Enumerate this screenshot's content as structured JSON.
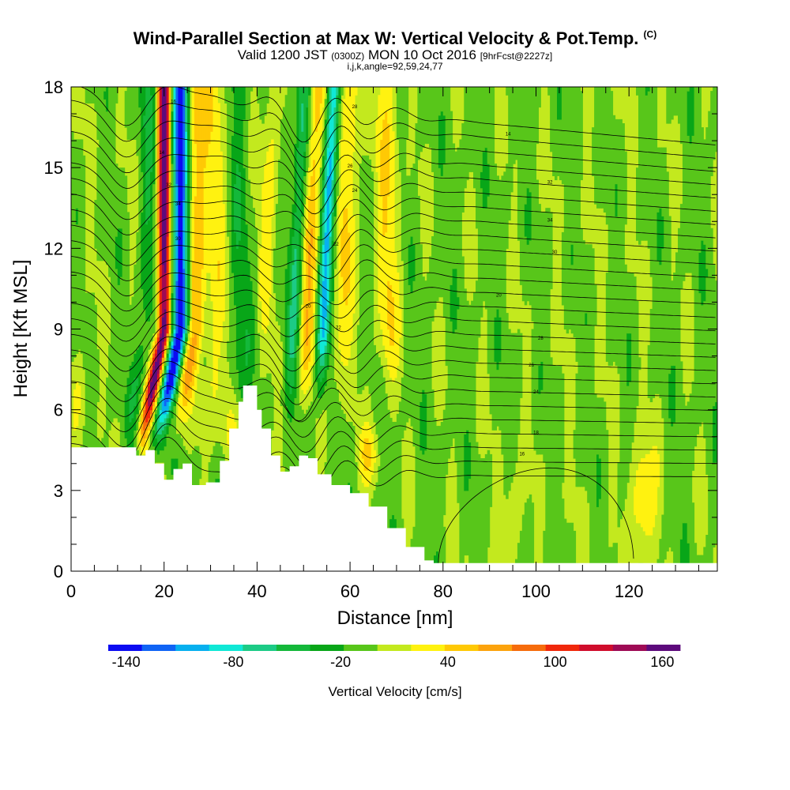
{
  "header": {
    "title": "Wind-Parallel Section at Max W: Vertical Velocity & Pot.Temp.",
    "title_mark": "(C)",
    "valid_prefix": "Valid 1200 JST",
    "valid_utc": "(0300Z)",
    "valid_date": "MON 10 Oct 2016",
    "forecast": "[9hrFcst@2227z]",
    "params": "i,j,k,angle=92,59,24,77"
  },
  "chart_data": {
    "type": "heatmap",
    "xlabel": "Distance [nm]",
    "ylabel": "Height [Kft MSL]",
    "xlim": [
      0,
      139
    ],
    "ylim": [
      0,
      18
    ],
    "x_ticks": [
      "0",
      "20",
      "40",
      "60",
      "80",
      "100",
      "120"
    ],
    "y_ticks": [
      "0",
      "3",
      "6",
      "9",
      "12",
      "15",
      "18"
    ],
    "colorbar": {
      "label": "Vertical Velocity [cm/s]",
      "tick_labels": [
        "-140",
        "-80",
        "-20",
        "40",
        "100",
        "160"
      ],
      "tick_values": [
        -140,
        -80,
        -20,
        40,
        100,
        160
      ],
      "levels": [
        -150,
        -130,
        -110,
        -90,
        -70,
        -50,
        -30,
        -10,
        10,
        30,
        50,
        70,
        90,
        110,
        130,
        150,
        170
      ],
      "colors": [
        "#0c0cf2",
        "#1064f5",
        "#07b0ef",
        "#10e8d6",
        "#1ccb86",
        "#14b83a",
        "#08a618",
        "#58c61a",
        "#c3e91e",
        "#fff210",
        "#ffc905",
        "#fca30d",
        "#f66c0c",
        "#f0280b",
        "#d00d2c",
        "#9e0a55",
        "#5d0a7c"
      ]
    },
    "terrain_kft": [
      [
        0,
        4.6
      ],
      [
        10,
        4.6
      ],
      [
        14,
        4.3
      ],
      [
        16,
        4.5
      ],
      [
        18,
        4.0
      ],
      [
        20,
        3.4
      ],
      [
        22,
        3.8
      ],
      [
        24,
        4.0
      ],
      [
        26,
        3.2
      ],
      [
        29,
        3.3
      ],
      [
        32,
        4.1
      ],
      [
        34,
        5.3
      ],
      [
        36,
        6.3
      ],
      [
        37,
        6.9
      ],
      [
        39,
        6.9
      ],
      [
        40,
        6.0
      ],
      [
        41,
        5.3
      ],
      [
        43,
        4.3
      ],
      [
        45,
        3.7
      ],
      [
        47,
        3.9
      ],
      [
        49,
        4.3
      ],
      [
        51,
        4.2
      ],
      [
        53,
        3.6
      ],
      [
        56,
        3.2
      ],
      [
        60,
        2.9
      ],
      [
        64,
        2.4
      ],
      [
        68,
        1.6
      ],
      [
        72,
        0.9
      ],
      [
        76,
        0.4
      ],
      [
        78,
        0.3
      ],
      [
        139,
        0.3
      ]
    ],
    "theta_label_samples": [
      "16",
      "14",
      "32",
      "34",
      "30",
      "28",
      "26",
      "24",
      "22",
      "20",
      "18"
    ]
  }
}
